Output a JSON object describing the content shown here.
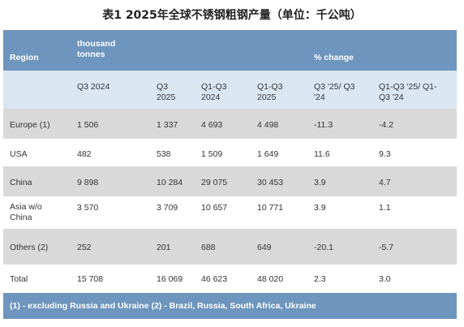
{
  "title": "表1 2025年全球不锈钢粗钢产量（单位：千公吨）",
  "header_top": {
    "region": "Region",
    "unit": "thousand\ntonnes",
    "pct": "% change"
  },
  "header_sub": [
    "",
    "Q3 2024",
    "Q3\n2025",
    "Q1-Q3\n2024",
    "Q1-Q3\n2025",
    "Q3 '25/ Q3\n'24",
    "Q1-Q3 '25/ Q1-\nQ3 '24"
  ],
  "rows": [
    {
      "region": "Europe (1)",
      "values": [
        "1 506",
        "1 337",
        "4 693",
        "4 498",
        "-11.3",
        "-4.2"
      ]
    },
    {
      "region": "USA",
      "values": [
        "482",
        "538",
        "1 509",
        "1 649",
        "11.6",
        "9.3"
      ]
    },
    {
      "region": "China",
      "values": [
        "9 898",
        "10 284",
        "29 075",
        "30 453",
        "3.9",
        "4.7"
      ]
    },
    {
      "region": "Asia w/o\nChina",
      "values": [
        "3 570",
        "3 709",
        "10 657",
        "10 771",
        "3.9",
        "1.1"
      ]
    },
    {
      "region": "Others (2)",
      "values": [
        "252",
        "201",
        "688",
        "649",
        "-20.1",
        "-5.7"
      ]
    },
    {
      "region": "Total",
      "values": [
        "15 708",
        "16 069",
        "46 623",
        "48 020",
        "2.3",
        "3.0"
      ]
    }
  ],
  "footer": "(1) - excluding Russia and Ukraine (2) - Brazil, Russia, South Africa, Ukraine"
}
